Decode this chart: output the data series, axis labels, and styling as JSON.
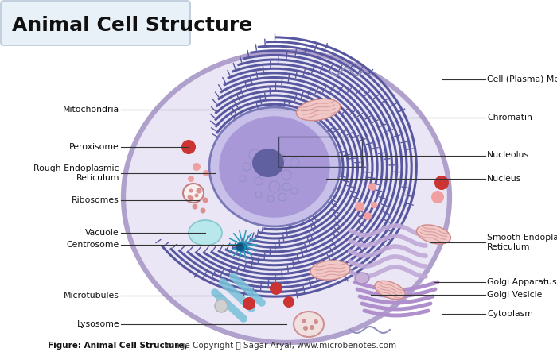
{
  "title": "Animal Cell Structure",
  "title_fontsize": 18,
  "title_box_color": "#e8f0f8",
  "title_box_edge": "#b8c8d8",
  "bg_color": "#ffffff",
  "footer_bold": "Figure: Animal Cell Structure,",
  "footer_normal": " Image Copyright Ⓢ Sagar Aryal, www.microbenotes.com",
  "cell_membrane_color": "#b0a0cc",
  "cell_fill_color": "#eae6f5",
  "nucleus_outer_color": "#7878b8",
  "nucleus_fill_color": "#c8c0e8",
  "nucleus_inner_color": "#a898d8",
  "nucleolus_color": "#6060a0",
  "chromatin_color": "#5858a0",
  "rough_er_color": "#6868a8",
  "smooth_er_color": "#c0a8d8",
  "golgi_color": "#b090cc",
  "golgi_vesicle_color": "#c8b0d8",
  "mito_outer": "#f0c8c8",
  "mito_inner": "#e0a0a0",
  "mito_border": "#d08888",
  "vacuole_fill": "#b8e8ec",
  "vacuole_edge": "#80c8cc",
  "centrosome_color": "#30a0c0",
  "peroxisome_color": "#cc3333",
  "lysosome_fill": "#f0e0e0",
  "lysosome_border": "#d09090",
  "ribosome_color": "#e09898",
  "microtubule_color": "#78c0d8",
  "small_red_color": "#cc3333",
  "small_pink_color": "#f0a0a0",
  "label_fontsize": 7.8,
  "line_color": "#333333"
}
